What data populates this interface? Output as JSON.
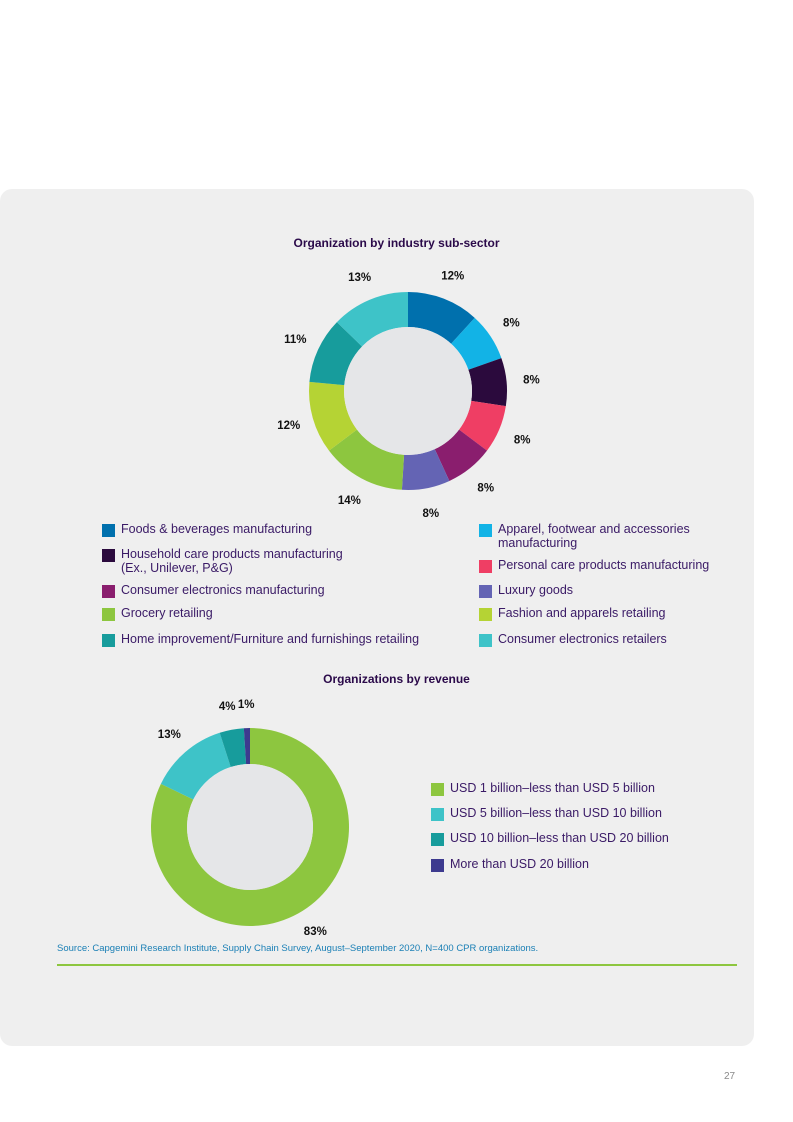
{
  "page_number": "27",
  "source": "Source: Capgemini Research Institute, Supply Chain Survey, August–September 2020, N=400 CPR organizations.",
  "chart_data": [
    {
      "type": "pie",
      "title": "Organization by industry sub-sector",
      "categories": [
        "Foods & beverages manufacturing",
        "Apparel, footwear and accessories manufacturing",
        "Household care products manufacturing (Ex., Unilever, P&G)",
        "Personal care products manufacturing",
        "Consumer electronics manufacturing",
        "Luxury goods",
        "Grocery retailing",
        "Fashion and apparels retailing",
        "Home improvement/Furniture and furnishings retailing",
        "Consumer electronics retailers"
      ],
      "values": [
        12,
        8,
        8,
        8,
        8,
        8,
        14,
        12,
        11,
        13
      ],
      "labels": [
        "12%",
        "8%",
        "8%",
        "8%",
        "8%",
        "8%",
        "14%",
        "12%",
        "11%",
        "13%"
      ],
      "colors": [
        "#0070ad",
        "#12b3e6",
        "#2b0a3d",
        "#ef3e64",
        "#8a1e6e",
        "#6464b4",
        "#8dc63f",
        "#b5d334",
        "#179c9c",
        "#3ec3c8"
      ],
      "legend": [
        {
          "label": "Foods & beverages manufacturing",
          "color": "#0070ad"
        },
        {
          "label": "Apparel, footwear and accessories\nmanufacturing",
          "color": "#12b3e6"
        },
        {
          "label": "Household care products manufacturing\n(Ex., Unilever, P&G)",
          "color": "#2b0a3d"
        },
        {
          "label": "Personal care products manufacturing",
          "color": "#ef3e64"
        },
        {
          "label": "Consumer electronics manufacturing",
          "color": "#8a1e6e"
        },
        {
          "label": "Luxury goods",
          "color": "#6464b4"
        },
        {
          "label": "Grocery retailing",
          "color": "#8dc63f"
        },
        {
          "label": "Fashion and apparels retailing",
          "color": "#b5d334"
        },
        {
          "label": "Home improvement/Furniture and furnishings retailing",
          "color": "#179c9c"
        },
        {
          "label": "Consumer electronics retailers",
          "color": "#3ec3c8"
        }
      ]
    },
    {
      "type": "pie",
      "title": "Organizations by revenue",
      "categories": [
        "USD 1 billion–less than USD 5 billion",
        "USD 5 billion–less than USD 10 billion",
        "USD 10 billion–less than USD 20 billion",
        "More than USD 20 billion"
      ],
      "values": [
        83,
        13,
        4,
        1
      ],
      "labels": [
        "83%",
        "13%",
        "4%",
        "1%"
      ],
      "colors": [
        "#8dc63f",
        "#3ec3c8",
        "#179c9c",
        "#3d3a8f"
      ],
      "legend": [
        {
          "label": "USD 1 billion–less than USD 5 billion",
          "color": "#8dc63f"
        },
        {
          "label": "USD 5 billion–less than USD 10 billion",
          "color": "#3ec3c8"
        },
        {
          "label": "USD 10 billion–less than USD 20 billion",
          "color": "#179c9c"
        },
        {
          "label": "More than USD 20 billion",
          "color": "#3d3a8f"
        }
      ]
    }
  ]
}
